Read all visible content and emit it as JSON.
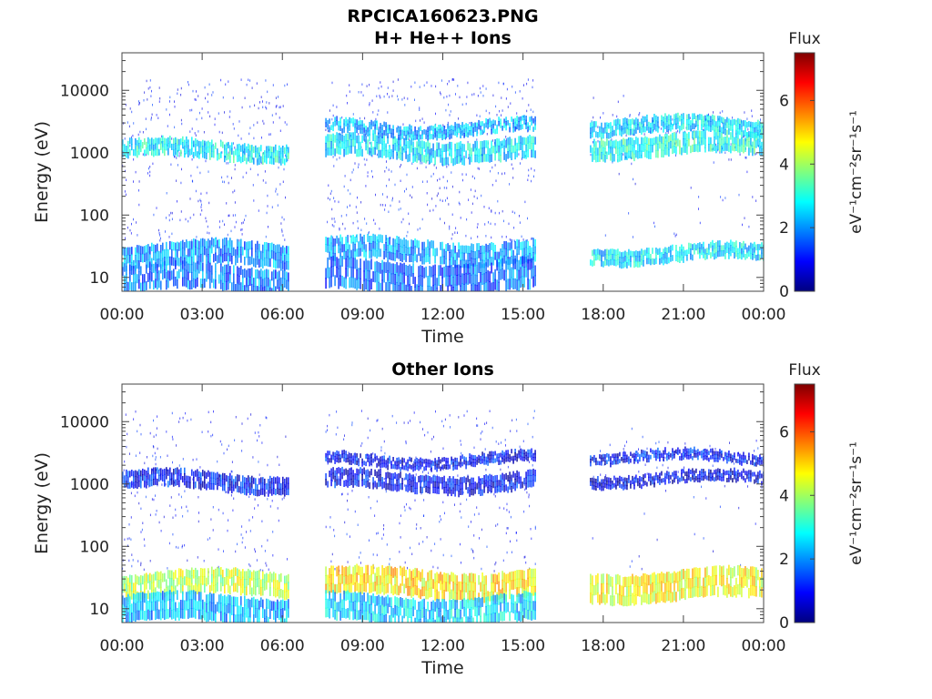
{
  "figure": {
    "title": "RPCICA160623.PNG"
  },
  "colormap": {
    "stops": [
      "#00007f",
      "#0000ff",
      "#007fff",
      "#00ffff",
      "#7fff7f",
      "#ffff00",
      "#ff7f00",
      "#ff0000",
      "#7f0000"
    ]
  },
  "chart_data": [
    {
      "type": "heatmap",
      "title": "H+ He++ Ions",
      "xlabel": "Time",
      "ylabel": "Energy (eV)",
      "x_ticks": [
        "00:00",
        "03:00",
        "06:00",
        "09:00",
        "12:00",
        "15:00",
        "18:00",
        "21:00",
        "00:00"
      ],
      "x_range_hours": [
        0,
        24
      ],
      "y_scale": "log",
      "y_ticks": [
        "10",
        "100",
        "1000",
        "10000"
      ],
      "y_range": [
        6,
        40000
      ],
      "colorbar": {
        "label_top": "Flux",
        "label": "eV⁻¹cm⁻²sr⁻¹s⁻¹",
        "ticks": [
          "0",
          "2",
          "4",
          "6"
        ],
        "range": [
          0,
          7.5
        ]
      },
      "data_gaps_hours": [
        [
          6.2,
          7.6
        ],
        [
          15.45,
          17.5
        ]
      ],
      "bands": [
        {
          "t": [
            0,
            6.2
          ],
          "e": [
            800,
            1500
          ],
          "flux": 2.8
        },
        {
          "t": [
            7.6,
            15.45
          ],
          "e": [
            800,
            1700
          ],
          "flux": 2.6
        },
        {
          "t": [
            7.6,
            15.45
          ],
          "e": [
            2000,
            3200
          ],
          "flux": 2.2
        },
        {
          "t": [
            17.5,
            24
          ],
          "e": [
            900,
            1900
          ],
          "flux": 3.0
        },
        {
          "t": [
            17.5,
            24
          ],
          "e": [
            2000,
            3500
          ],
          "flux": 2.6
        },
        {
          "t": [
            0,
            6.2
          ],
          "e": [
            15,
            35
          ],
          "flux": 2.0
        },
        {
          "t": [
            0,
            6.2
          ],
          "e": [
            6,
            15
          ],
          "flux": 1.8
        },
        {
          "t": [
            7.6,
            15.45
          ],
          "e": [
            18,
            40
          ],
          "flux": 2.1
        },
        {
          "t": [
            7.6,
            15.45
          ],
          "e": [
            6,
            18
          ],
          "flux": 1.7
        },
        {
          "t": [
            17.5,
            24
          ],
          "e": [
            18,
            32
          ],
          "flux": 2.6
        }
      ]
    },
    {
      "type": "heatmap",
      "title": "Other Ions",
      "xlabel": "Time",
      "ylabel": "Energy (eV)",
      "x_ticks": [
        "00:00",
        "03:00",
        "06:00",
        "09:00",
        "12:00",
        "15:00",
        "18:00",
        "21:00",
        "00:00"
      ],
      "x_range_hours": [
        0,
        24
      ],
      "y_scale": "log",
      "y_ticks": [
        "10",
        "100",
        "1000",
        "10000"
      ],
      "y_range": [
        6,
        40000
      ],
      "colorbar": {
        "label_top": "Flux",
        "label": "eV⁻¹cm⁻²sr⁻¹s⁻¹",
        "ticks": [
          "0",
          "2",
          "4",
          "6"
        ],
        "range": [
          0,
          7.5
        ]
      },
      "data_gaps_hours": [
        [
          6.2,
          7.6
        ],
        [
          15.45,
          17.5
        ]
      ],
      "bands": [
        {
          "t": [
            0,
            6.2
          ],
          "e": [
            800,
            1500
          ],
          "flux": 1.0
        },
        {
          "t": [
            7.6,
            15.45
          ],
          "e": [
            800,
            1500
          ],
          "flux": 0.9
        },
        {
          "t": [
            7.6,
            15.45
          ],
          "e": [
            2000,
            3000
          ],
          "flux": 0.9
        },
        {
          "t": [
            17.5,
            24
          ],
          "e": [
            1000,
            1500
          ],
          "flux": 0.8
        },
        {
          "t": [
            17.5,
            24
          ],
          "e": [
            2200,
            3200
          ],
          "flux": 1.0
        },
        {
          "t": [
            0,
            6.2
          ],
          "e": [
            16,
            38
          ],
          "flux": 4.2
        },
        {
          "t": [
            0,
            6.2
          ],
          "e": [
            6,
            16
          ],
          "flux": 2.2
        },
        {
          "t": [
            7.6,
            15.45
          ],
          "e": [
            16,
            42
          ],
          "flux": 4.8
        },
        {
          "t": [
            7.6,
            15.45
          ],
          "e": [
            6,
            16
          ],
          "flux": 2.5
        },
        {
          "t": [
            17.5,
            24
          ],
          "e": [
            14,
            40
          ],
          "flux": 4.6
        }
      ]
    }
  ]
}
